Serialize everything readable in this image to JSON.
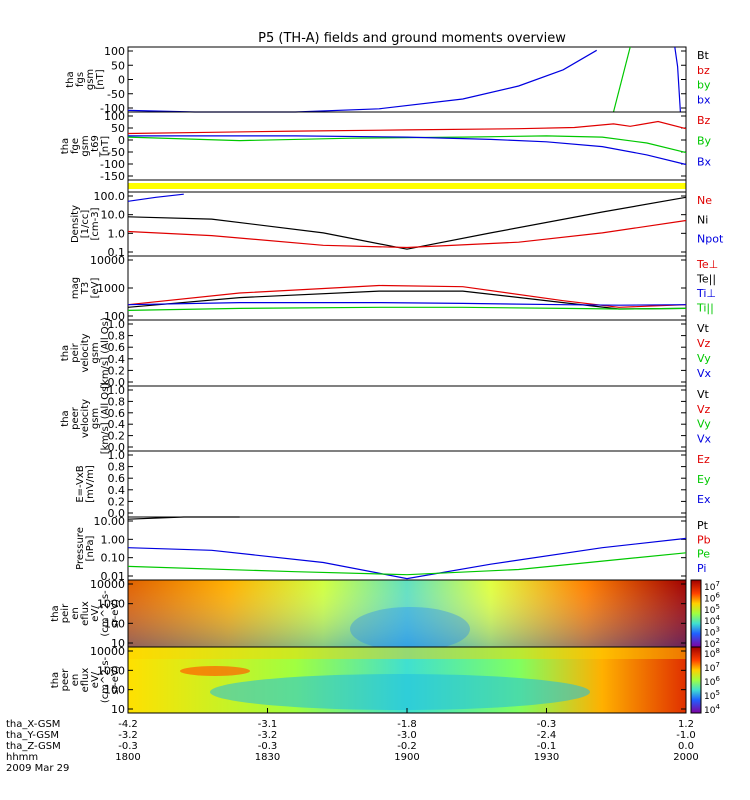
{
  "title": "P5 (TH-A) fields and ground moments overview",
  "colors": {
    "black": "#000000",
    "red": "#e00000",
    "green": "#00c800",
    "blue": "#0000e0",
    "yellow": "#ffff00"
  },
  "x_axis": {
    "time_ticks": [
      "1800",
      "1830",
      "1900",
      "1930",
      "2000"
    ],
    "rows": [
      {
        "label": "tha_X-GSM",
        "values": [
          "-4.2",
          "-3.1",
          "-1.8",
          "-0.3",
          "1.2"
        ]
      },
      {
        "label": "tha_Y-GSM",
        "values": [
          "-3.2",
          "-3.2",
          "-3.0",
          "-2.4",
          "-1.0"
        ]
      },
      {
        "label": "tha_Z-GSM",
        "values": [
          "-0.3",
          "-0.3",
          "-0.2",
          "-0.1",
          "0.0"
        ]
      },
      {
        "label": "hhmm",
        "values": [
          "1800",
          "1830",
          "1900",
          "1930",
          "2000"
        ]
      }
    ],
    "date": "2009 Mar 29"
  },
  "panels": [
    {
      "id": "fgs",
      "ylabel": [
        "tha",
        "fgs",
        "gsm",
        "[nT]"
      ],
      "ticks": [
        "100",
        "50",
        "0",
        "-50",
        "-100"
      ],
      "legend": [
        "Bt",
        "bz",
        "by",
        "bx"
      ],
      "legend_colors": [
        "black",
        "red",
        "green",
        "blue"
      ]
    },
    {
      "id": "fge",
      "ylabel": [
        "tha",
        "fge",
        "gsm",
        "_t69",
        "[nT]"
      ],
      "ticks": [
        "100",
        "50",
        "0",
        "-50",
        "-100",
        "-150"
      ],
      "legend": [
        "Bz",
        "By",
        "Bx"
      ],
      "legend_colors": [
        "red",
        "green",
        "blue"
      ]
    },
    {
      "id": "flag",
      "ylabel": [],
      "ticks": [],
      "legend": [],
      "legend_colors": []
    },
    {
      "id": "density",
      "ylabel": [
        "Density",
        "[1/cc]",
        "[cm-3]"
      ],
      "ticks": [
        "100.0",
        "10.0",
        "1.0",
        "0.1"
      ],
      "legend": [
        "Ne",
        "Ni",
        "Npot"
      ],
      "legend_colors": [
        "red",
        "black",
        "blue"
      ]
    },
    {
      "id": "temp",
      "ylabel": [
        "mag",
        "T3",
        "[eV]"
      ],
      "ticks": [
        "10000",
        "1000",
        "100"
      ],
      "legend": [
        "Te⊥",
        "Te||",
        "Ti⊥",
        "Ti||"
      ],
      "legend_colors": [
        "red",
        "black",
        "blue",
        "green"
      ]
    },
    {
      "id": "peir_vel",
      "ylabel": [
        "tha",
        "peir",
        "velocity",
        "gsm",
        "[km/s] (All Qs)"
      ],
      "ticks": [
        "1.0",
        "0.8",
        "0.6",
        "0.4",
        "0.2",
        "0.0"
      ],
      "legend": [
        "Vt",
        "Vz",
        "Vy",
        "Vx"
      ],
      "legend_colors": [
        "black",
        "red",
        "green",
        "blue"
      ]
    },
    {
      "id": "peer_vel",
      "ylabel": [
        "tha",
        "peer",
        "velocity",
        "gsm",
        "[km/s] (All Qs)"
      ],
      "ticks": [
        "1.0",
        "0.8",
        "0.6",
        "0.4",
        "0.2",
        "0.0"
      ],
      "legend": [
        "Vt",
        "Vz",
        "Vy",
        "Vx"
      ],
      "legend_colors": [
        "black",
        "red",
        "green",
        "blue"
      ]
    },
    {
      "id": "efield",
      "ylabel": [
        "E=-VxB",
        "[mV/m]"
      ],
      "ticks": [
        "1.0",
        "0.8",
        "0.6",
        "0.4",
        "0.2",
        "0.0"
      ],
      "legend": [
        "Ez",
        "Ey",
        "Ex"
      ],
      "legend_colors": [
        "red",
        "green",
        "blue"
      ]
    },
    {
      "id": "pressure",
      "ylabel": [
        "Pressure",
        "[nPa]"
      ],
      "ticks": [
        "10.00",
        "1.00",
        "0.10",
        "0.01"
      ],
      "legend": [
        "Pt",
        "Pb",
        "Pe",
        "Pi"
      ],
      "legend_colors": [
        "black",
        "red",
        "green",
        "blue"
      ]
    },
    {
      "id": "peir_spec",
      "ylabel": [
        "tha",
        "peir",
        "en",
        "eflux",
        "eV/",
        "(cm^2-s-",
        "sr-eV)"
      ],
      "ticks": [
        "10000",
        "1000",
        "100",
        "10"
      ],
      "legend": [],
      "legend_colors": [],
      "colorbar": [
        "10^7",
        "10^6",
        "10^5",
        "10^4",
        "10^3",
        "10^2"
      ]
    },
    {
      "id": "peer_spec",
      "ylabel": [
        "tha",
        "peer",
        "en",
        "eflux",
        "eV/",
        "(cm^2-s-",
        "sr-eV)"
      ],
      "ticks": [
        "10000",
        "1000",
        "100",
        "10"
      ],
      "legend": [],
      "legend_colors": [],
      "colorbar": [
        "10^8",
        "10^7",
        "10^6",
        "10^5",
        "10^4"
      ]
    }
  ],
  "chart_data": [
    {
      "type": "line",
      "panel": "fgs",
      "ylim": [
        -100,
        100
      ],
      "x": [
        "1800",
        "1830",
        "1900",
        "1930",
        "2000"
      ],
      "series": [
        {
          "name": "bx",
          "color": "blue",
          "points": [
            [
              0,
              -95
            ],
            [
              0.12,
              -100
            ],
            [
              0.3,
              -100
            ],
            [
              0.45,
              -90
            ],
            [
              0.6,
              -60
            ],
            [
              0.7,
              -20
            ],
            [
              0.78,
              30
            ],
            [
              0.84,
              90
            ]
          ]
        },
        {
          "name": "by",
          "color": "green",
          "points": [
            [
              0.87,
              -100
            ],
            [
              0.9,
              100
            ]
          ]
        },
        {
          "name": "bx2",
          "color": "blue",
          "points": [
            [
              0.98,
              100
            ],
            [
              0.985,
              40
            ],
            [
              0.99,
              -100
            ]
          ]
        }
      ]
    },
    {
      "type": "line",
      "panel": "fge",
      "ylim": [
        -175,
        110
      ],
      "x": [
        "1800",
        "1830",
        "1900",
        "1930",
        "2000"
      ],
      "series": [
        {
          "name": "Bz",
          "color": "red",
          "points": [
            [
              0,
              20
            ],
            [
              0.15,
              25
            ],
            [
              0.3,
              30
            ],
            [
              0.5,
              35
            ],
            [
              0.7,
              40
            ],
            [
              0.8,
              45
            ],
            [
              0.87,
              60
            ],
            [
              0.9,
              50
            ],
            [
              0.95,
              70
            ],
            [
              1,
              40
            ]
          ]
        },
        {
          "name": "By",
          "color": "green",
          "points": [
            [
              0,
              5
            ],
            [
              0.2,
              -10
            ],
            [
              0.4,
              0
            ],
            [
              0.6,
              5
            ],
            [
              0.75,
              10
            ],
            [
              0.85,
              5
            ],
            [
              0.93,
              -20
            ],
            [
              1,
              -60
            ]
          ]
        },
        {
          "name": "Bx",
          "color": "blue",
          "points": [
            [
              0,
              10
            ],
            [
              0.3,
              10
            ],
            [
              0.5,
              5
            ],
            [
              0.65,
              -5
            ],
            [
              0.75,
              -15
            ],
            [
              0.85,
              -35
            ],
            [
              0.93,
              -70
            ],
            [
              1,
              -110
            ]
          ]
        }
      ]
    },
    {
      "type": "line",
      "panel": "density",
      "ylim_log": [
        0.05,
        200
      ],
      "x": [
        "1800",
        "1830",
        "1900",
        "1930",
        "2000"
      ],
      "series": [
        {
          "name": "Ni",
          "color": "black",
          "points": [
            [
              0,
              8
            ],
            [
              0.15,
              6
            ],
            [
              0.35,
              1
            ],
            [
              0.5,
              0.12
            ],
            [
              0.65,
              1
            ],
            [
              0.85,
              15
            ],
            [
              1,
              100
            ]
          ]
        },
        {
          "name": "Ne",
          "color": "red",
          "points": [
            [
              0,
              1.2
            ],
            [
              0.15,
              0.7
            ],
            [
              0.35,
              0.2
            ],
            [
              0.5,
              0.15
            ],
            [
              0.7,
              0.3
            ],
            [
              0.85,
              1
            ],
            [
              1,
              5
            ]
          ]
        },
        {
          "name": "Npot",
          "color": "blue",
          "points": [
            [
              0,
              60
            ],
            [
              0.05,
              100
            ],
            [
              0.1,
              150
            ]
          ]
        }
      ]
    },
    {
      "type": "line",
      "panel": "temp",
      "ylim_log": [
        100,
        10000
      ],
      "x": [
        "1800",
        "1830",
        "1900",
        "1930",
        "2000"
      ],
      "series": [
        {
          "name": "Te⊥",
          "color": "red",
          "points": [
            [
              0,
              300
            ],
            [
              0.2,
              700
            ],
            [
              0.45,
              1200
            ],
            [
              0.6,
              1100
            ],
            [
              0.78,
              400
            ],
            [
              0.88,
              250
            ],
            [
              1,
              300
            ]
          ]
        },
        {
          "name": "Te||",
          "color": "black",
          "points": [
            [
              0,
              250
            ],
            [
              0.2,
              500
            ],
            [
              0.45,
              800
            ],
            [
              0.6,
              800
            ],
            [
              0.78,
              350
            ],
            [
              0.88,
              220
            ],
            [
              1,
              230
            ]
          ]
        },
        {
          "name": "Ti⊥",
          "color": "blue",
          "points": [
            [
              0,
              300
            ],
            [
              0.2,
              350
            ],
            [
              0.45,
              350
            ],
            [
              0.6,
              330
            ],
            [
              0.78,
              300
            ],
            [
              0.88,
              290
            ],
            [
              1,
              300
            ]
          ]
        },
        {
          "name": "Ti||",
          "color": "green",
          "points": [
            [
              0,
              200
            ],
            [
              0.2,
              230
            ],
            [
              0.45,
              250
            ],
            [
              0.6,
              250
            ],
            [
              0.78,
              230
            ],
            [
              0.88,
              220
            ],
            [
              1,
              230
            ]
          ]
        }
      ]
    },
    {
      "type": "line",
      "panel": "pressure",
      "ylim_log": [
        0.005,
        20
      ],
      "x": [
        "1800",
        "1830",
        "1900",
        "1930",
        "2000"
      ],
      "series": [
        {
          "name": "Pt",
          "color": "black",
          "points": [
            [
              0,
              15
            ],
            [
              0.1,
              20
            ],
            [
              0.2,
              25
            ]
          ]
        },
        {
          "name": "Pi",
          "color": "blue",
          "points": [
            [
              0,
              0.35
            ],
            [
              0.15,
              0.25
            ],
            [
              0.35,
              0.05
            ],
            [
              0.5,
              0.006
            ],
            [
              0.65,
              0.04
            ],
            [
              0.85,
              0.35
            ],
            [
              1,
              1.2
            ]
          ]
        },
        {
          "name": "Pe",
          "color": "green",
          "points": [
            [
              0,
              0.03
            ],
            [
              0.3,
              0.015
            ],
            [
              0.5,
              0.01
            ],
            [
              0.7,
              0.02
            ],
            [
              0.85,
              0.06
            ],
            [
              1,
              0.18
            ]
          ]
        }
      ]
    },
    {
      "type": "heatmap",
      "panel": "peir_spec",
      "ylim_log": [
        10,
        10000
      ],
      "x": [
        "1800",
        "1830",
        "1900",
        "1930",
        "2000"
      ]
    },
    {
      "type": "heatmap",
      "panel": "peer_spec",
      "ylim_log": [
        10,
        10000
      ],
      "x": [
        "1800",
        "1830",
        "1900",
        "1930",
        "2000"
      ]
    }
  ]
}
